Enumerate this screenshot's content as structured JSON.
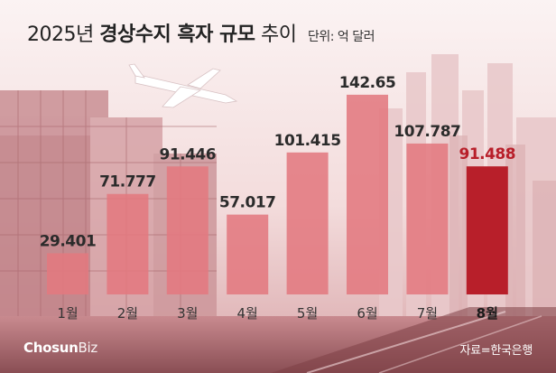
{
  "title": {
    "year": "2025년",
    "bold": "경상수지 흑자 규모",
    "rest": "추이",
    "unit": "단위: 억 달러"
  },
  "chart_data": {
    "type": "bar",
    "categories": [
      "1월",
      "2월",
      "3월",
      "4월",
      "5월",
      "6월",
      "7월",
      "8월"
    ],
    "values": [
      29.401,
      71.777,
      91.446,
      57.017,
      101.415,
      142.65,
      107.787,
      91.488
    ],
    "value_labels": [
      "29.401",
      "71.777",
      "91.446",
      "57.017",
      "101.415",
      "142.65",
      "107.787",
      "91.488"
    ],
    "ylabel": "",
    "xlabel": "",
    "ylim": [
      0,
      160
    ],
    "highlight_index": 7,
    "grid": false,
    "colors": {
      "bar": "#e3797f",
      "highlight": "#b81f2a",
      "label": "#2b2b2b",
      "highlight_label": "#b81f2a"
    }
  },
  "footer": {
    "logo_main": "Chosun",
    "logo_sub": "Biz",
    "source": "자료=한국은행"
  }
}
